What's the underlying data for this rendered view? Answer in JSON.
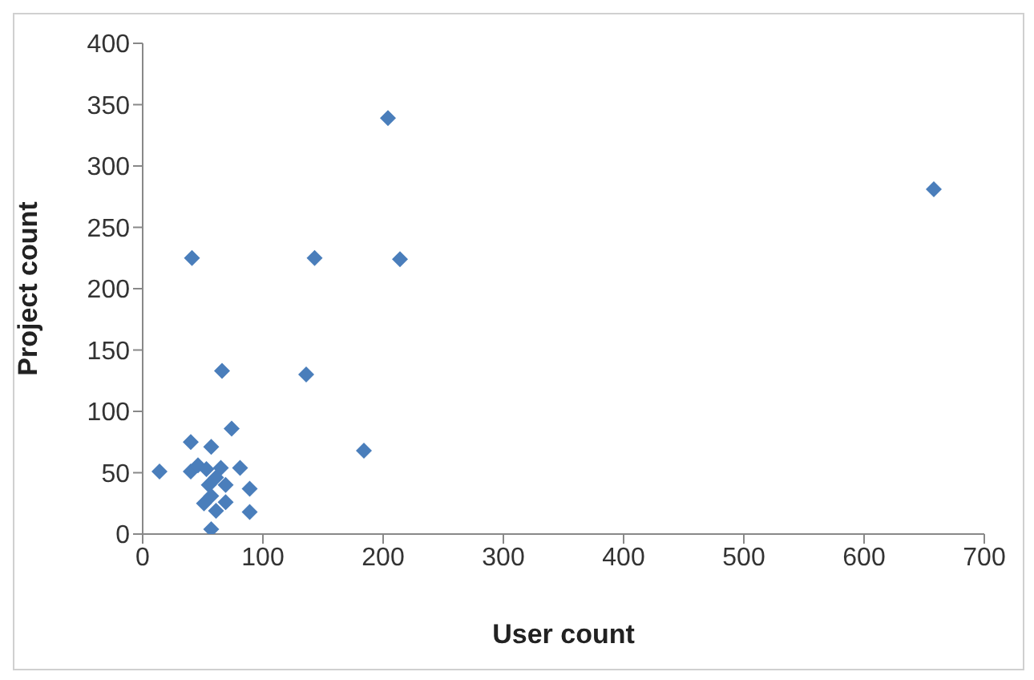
{
  "chart_data": {
    "type": "scatter",
    "xlabel": "User count",
    "ylabel": "Project count",
    "marker": "diamond",
    "grid": false,
    "legend": false,
    "xlim": [
      0,
      700
    ],
    "xticks": [
      0,
      100,
      200,
      300,
      400,
      500,
      600,
      700
    ],
    "ylim": [
      0,
      400
    ],
    "yticks": [
      0,
      50,
      100,
      150,
      200,
      250,
      300,
      350,
      400
    ],
    "series": [
      {
        "color": "#4a7ebb",
        "x": [
          204,
          658,
          41,
          143,
          214,
          66,
          136,
          184,
          74,
          40,
          57,
          14,
          40,
          46,
          53,
          65,
          81,
          89,
          89,
          57,
          69,
          55,
          61,
          51,
          69,
          61,
          57
        ],
        "values": [
          339,
          281,
          225,
          225,
          224,
          133,
          130,
          68,
          86,
          75,
          71,
          51,
          51,
          56,
          53,
          54,
          54,
          37,
          18,
          4,
          40,
          40,
          46,
          25,
          26,
          19,
          31
        ]
      }
    ]
  }
}
